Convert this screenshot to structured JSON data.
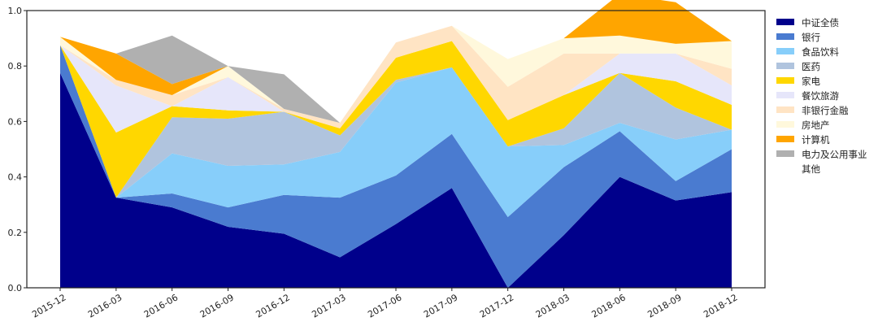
{
  "chart_data": {
    "type": "area",
    "stacked": true,
    "x": [
      "2015-12",
      "2016-03",
      "2016-06",
      "2016-09",
      "2016-12",
      "2017-03",
      "2017-06",
      "2017-09",
      "2017-12",
      "2018-03",
      "2018-06",
      "2018-09",
      "2018-12"
    ],
    "xticks": [
      "2015-12",
      "2016-03",
      "2016-06",
      "2016-09",
      "2016-12",
      "2017-03",
      "2017-06",
      "2017-09",
      "2017-12",
      "2018-03",
      "2018-06",
      "2018-09",
      "2018-12"
    ],
    "ylim": [
      0,
      1.0
    ],
    "yticks": [
      "0.0",
      "0.2",
      "0.4",
      "0.6",
      "0.8",
      "1.0"
    ],
    "grid": false,
    "legend_position": "right",
    "series": [
      {
        "name": "中证全债",
        "color": "#00008b",
        "values": [
          0.775,
          0.325,
          0.29,
          0.22,
          0.195,
          0.11,
          0.23,
          0.36,
          0.0,
          0.19,
          0.4,
          0.315,
          0.345
        ]
      },
      {
        "name": "银行",
        "color": "#4a7bd0",
        "values": [
          0.1,
          0.0,
          0.05,
          0.07,
          0.14,
          0.215,
          0.175,
          0.195,
          0.255,
          0.245,
          0.165,
          0.07,
          0.155
        ]
      },
      {
        "name": "食品饮料",
        "color": "#87cefa",
        "values": [
          0.0,
          0.0,
          0.145,
          0.15,
          0.11,
          0.165,
          0.335,
          0.24,
          0.255,
          0.08,
          0.03,
          0.15,
          0.07
        ]
      },
      {
        "name": "医药",
        "color": "#b0c4de",
        "values": [
          0.0,
          0.0,
          0.13,
          0.17,
          0.19,
          0.06,
          0.01,
          0.0,
          0.0,
          0.06,
          0.18,
          0.115,
          0.0
        ]
      },
      {
        "name": "家电",
        "color": "#ffd700",
        "values": [
          0.0,
          0.235,
          0.04,
          0.03,
          0.0,
          0.025,
          0.08,
          0.095,
          0.095,
          0.12,
          0.0,
          0.095,
          0.09
        ]
      },
      {
        "name": "餐饮旅游",
        "color": "#e6e6fa",
        "values": [
          0.0,
          0.17,
          0.0,
          0.12,
          0.0,
          0.0,
          0.0,
          0.0,
          0.0,
          0.0,
          0.07,
          0.1,
          0.07
        ]
      },
      {
        "name": "非银行金融",
        "color": "#ffe4c4",
        "values": [
          0.0,
          0.02,
          0.04,
          0.0,
          0.01,
          0.02,
          0.055,
          0.055,
          0.12,
          0.15,
          0.0,
          0.0,
          0.06
        ]
      },
      {
        "name": "房地产",
        "color": "#fff8dc",
        "values": [
          0.03,
          0.0,
          0.0,
          0.04,
          0.0,
          0.0,
          0.0,
          0.0,
          0.1,
          0.055,
          0.065,
          0.035,
          0.1
        ]
      },
      {
        "name": "计算机",
        "color": "#ffa500",
        "values": [
          0.0,
          0.095,
          0.04,
          0.0,
          0.0,
          0.0,
          0.0,
          0.0,
          0.0,
          0.0,
          0.15,
          0.15,
          0.0
        ]
      },
      {
        "name": "电力及公用事业",
        "color": "#b0b0b0",
        "values": [
          0.0,
          0.0,
          0.175,
          0.0,
          0.125,
          0.0,
          0.0,
          0.0,
          0.0,
          0.0,
          0.0,
          0.0,
          0.0
        ]
      },
      {
        "name": "其他",
        "color": "#ffffff",
        "values": [
          0.0,
          0.0,
          0.0,
          0.0,
          0.0,
          0.0,
          0.0,
          0.0,
          0.0,
          0.0,
          0.0,
          0.0,
          0.0
        ]
      }
    ]
  }
}
